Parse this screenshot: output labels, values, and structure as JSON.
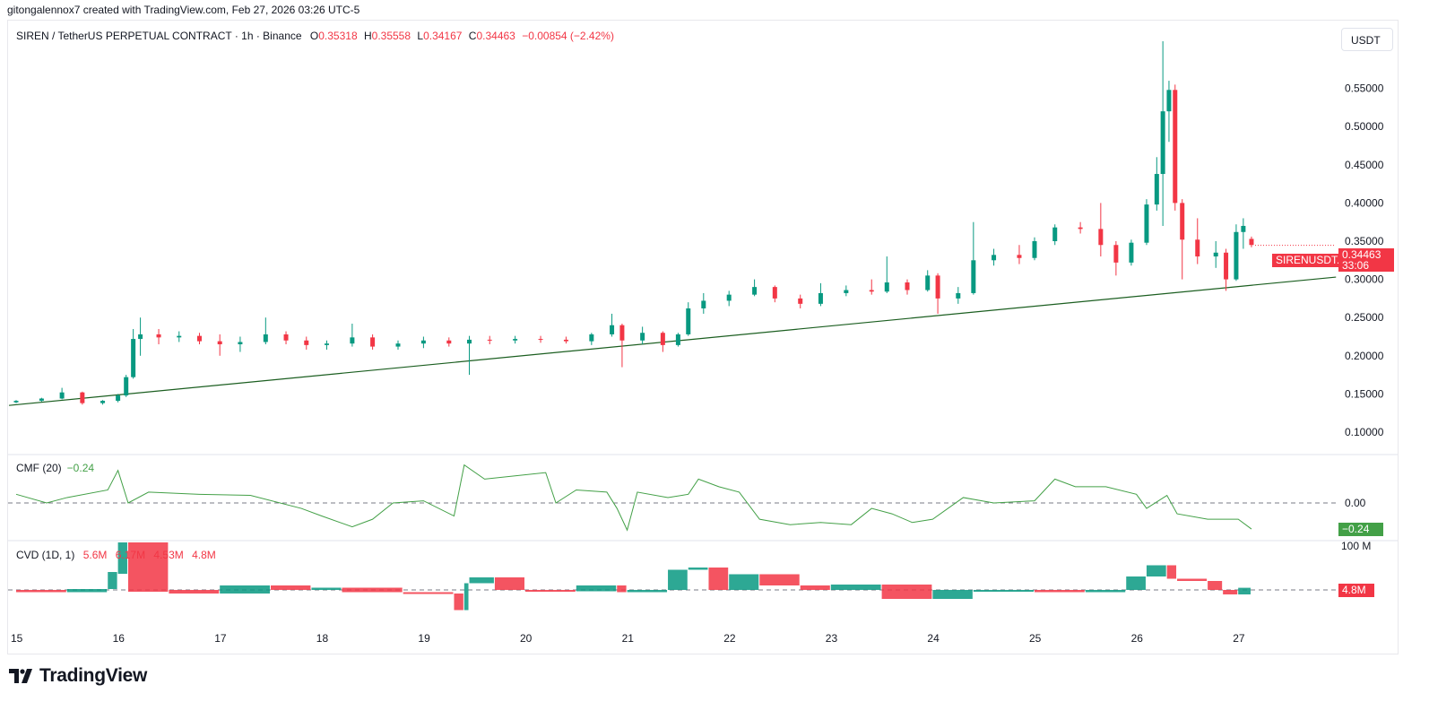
{
  "credit": "gitongalennox7 created with TradingView.com, Feb 27, 2026 03:26 UTC-5",
  "header": {
    "symbol": "SIREN / TetherUS PERPETUAL CONTRACT · 1h · Binance",
    "o_label": "O",
    "o": "0.35318",
    "h_label": "H",
    "h": "0.35558",
    "l_label": "L",
    "l": "0.34167",
    "c_label": "C",
    "c": "0.34463",
    "change": "−0.00854 (−2.42%)"
  },
  "currency_button": "USDT",
  "price_tag": {
    "symbol": "SIRENUSDT.P",
    "price": "0.34463",
    "countdown": "33:06"
  },
  "colors": {
    "up": "#089981",
    "down": "#f23645",
    "cmf": "#43a047",
    "trendline": "#1b5e20"
  },
  "cmf": {
    "label": "CMF (20)",
    "value": "−0.24",
    "zero_label": "0.00",
    "tag": "−0.24"
  },
  "cvd": {
    "label": "CVD (1D, 1)",
    "values": [
      "5.6M",
      "6.17M",
      "4.53M",
      "4.8M"
    ],
    "axis_label": "100 M",
    "tag": "4.8M"
  },
  "logo": "TradingView",
  "chart_data": {
    "type": "candlestick",
    "title": "SIREN / TetherUS PERPETUAL CONTRACT · 1h · Binance",
    "x_ticks": [
      "15",
      "16",
      "17",
      "18",
      "19",
      "20",
      "21",
      "22",
      "23",
      "24",
      "25",
      "26",
      "27"
    ],
    "y_ticks": [
      "0.10000",
      "0.15000",
      "0.20000",
      "0.25000",
      "0.30000",
      "0.35000",
      "0.40000",
      "0.45000",
      "0.50000",
      "0.55000"
    ],
    "ylim": [
      0.1,
      0.6
    ],
    "candles_t_o_h_l_c": [
      [
        15.0,
        0.139,
        0.142,
        0.138,
        0.141
      ],
      [
        15.25,
        0.141,
        0.145,
        0.14,
        0.144
      ],
      [
        15.45,
        0.144,
        0.158,
        0.143,
        0.152
      ],
      [
        15.65,
        0.152,
        0.153,
        0.136,
        0.138
      ],
      [
        15.85,
        0.138,
        0.142,
        0.136,
        0.141
      ],
      [
        16.0,
        0.141,
        0.15,
        0.139,
        0.148
      ],
      [
        16.08,
        0.148,
        0.175,
        0.146,
        0.172
      ],
      [
        16.15,
        0.172,
        0.235,
        0.17,
        0.222
      ],
      [
        16.22,
        0.222,
        0.25,
        0.2,
        0.228
      ],
      [
        16.4,
        0.228,
        0.235,
        0.215,
        0.224
      ],
      [
        16.6,
        0.224,
        0.232,
        0.218,
        0.226
      ],
      [
        16.8,
        0.226,
        0.23,
        0.215,
        0.219
      ],
      [
        17.0,
        0.219,
        0.228,
        0.2,
        0.215
      ],
      [
        17.2,
        0.215,
        0.225,
        0.205,
        0.218
      ],
      [
        17.45,
        0.218,
        0.25,
        0.215,
        0.228
      ],
      [
        17.65,
        0.228,
        0.232,
        0.215,
        0.22
      ],
      [
        17.85,
        0.22,
        0.225,
        0.208,
        0.214
      ],
      [
        18.05,
        0.214,
        0.22,
        0.208,
        0.216
      ],
      [
        18.3,
        0.216,
        0.242,
        0.212,
        0.224
      ],
      [
        18.5,
        0.224,
        0.228,
        0.208,
        0.212
      ],
      [
        18.75,
        0.212,
        0.22,
        0.208,
        0.216
      ],
      [
        19.0,
        0.216,
        0.225,
        0.21,
        0.22
      ],
      [
        19.25,
        0.22,
        0.224,
        0.212,
        0.216
      ],
      [
        19.45,
        0.216,
        0.226,
        0.175,
        0.221
      ],
      [
        19.65,
        0.221,
        0.226,
        0.215,
        0.22
      ],
      [
        19.9,
        0.22,
        0.226,
        0.216,
        0.222
      ],
      [
        20.15,
        0.222,
        0.226,
        0.217,
        0.221
      ],
      [
        20.4,
        0.221,
        0.225,
        0.216,
        0.219
      ],
      [
        20.65,
        0.219,
        0.23,
        0.214,
        0.228
      ],
      [
        20.85,
        0.228,
        0.255,
        0.225,
        0.24
      ],
      [
        20.95,
        0.24,
        0.242,
        0.185,
        0.22
      ],
      [
        21.15,
        0.22,
        0.238,
        0.215,
        0.23
      ],
      [
        21.35,
        0.23,
        0.232,
        0.205,
        0.214
      ],
      [
        21.5,
        0.214,
        0.23,
        0.212,
        0.228
      ],
      [
        21.6,
        0.228,
        0.27,
        0.226,
        0.262
      ],
      [
        21.75,
        0.262,
        0.282,
        0.255,
        0.272
      ],
      [
        22.0,
        0.272,
        0.285,
        0.265,
        0.28
      ],
      [
        22.25,
        0.28,
        0.3,
        0.278,
        0.29
      ],
      [
        22.45,
        0.29,
        0.292,
        0.27,
        0.275
      ],
      [
        22.7,
        0.275,
        0.28,
        0.262,
        0.268
      ],
      [
        22.9,
        0.268,
        0.295,
        0.265,
        0.282
      ],
      [
        23.15,
        0.282,
        0.292,
        0.278,
        0.286
      ],
      [
        23.4,
        0.286,
        0.3,
        0.28,
        0.284
      ],
      [
        23.55,
        0.284,
        0.33,
        0.282,
        0.296
      ],
      [
        23.75,
        0.296,
        0.3,
        0.28,
        0.286
      ],
      [
        23.95,
        0.286,
        0.312,
        0.284,
        0.305
      ],
      [
        24.05,
        0.305,
        0.308,
        0.255,
        0.275
      ],
      [
        24.25,
        0.275,
        0.29,
        0.268,
        0.282
      ],
      [
        24.4,
        0.282,
        0.375,
        0.28,
        0.325
      ],
      [
        24.6,
        0.325,
        0.34,
        0.318,
        0.332
      ],
      [
        24.85,
        0.332,
        0.345,
        0.32,
        0.328
      ],
      [
        25.0,
        0.328,
        0.355,
        0.325,
        0.35
      ],
      [
        25.2,
        0.35,
        0.372,
        0.345,
        0.368
      ],
      [
        25.45,
        0.368,
        0.375,
        0.36,
        0.366
      ],
      [
        25.65,
        0.366,
        0.4,
        0.33,
        0.345
      ],
      [
        25.8,
        0.345,
        0.35,
        0.305,
        0.322
      ],
      [
        25.95,
        0.322,
        0.352,
        0.318,
        0.348
      ],
      [
        26.1,
        0.348,
        0.405,
        0.345,
        0.398
      ],
      [
        26.2,
        0.398,
        0.46,
        0.39,
        0.438
      ],
      [
        26.26,
        0.438,
        0.62,
        0.37,
        0.52
      ],
      [
        26.32,
        0.52,
        0.56,
        0.48,
        0.548
      ],
      [
        26.38,
        0.548,
        0.555,
        0.39,
        0.4
      ],
      [
        26.45,
        0.4,
        0.405,
        0.3,
        0.352
      ],
      [
        26.6,
        0.352,
        0.38,
        0.32,
        0.33
      ],
      [
        26.78,
        0.33,
        0.35,
        0.315,
        0.335
      ],
      [
        26.88,
        0.335,
        0.34,
        0.285,
        0.3
      ],
      [
        26.98,
        0.3,
        0.372,
        0.298,
        0.362
      ],
      [
        27.05,
        0.362,
        0.38,
        0.34,
        0.37
      ],
      [
        27.13,
        0.353,
        0.356,
        0.342,
        0.345
      ]
    ],
    "trendline": {
      "start": [
        14.93,
        0.135
      ],
      "end": [
        27.96,
        0.303
      ]
    },
    "cmf_series": [
      [
        15.0,
        0.08
      ],
      [
        15.3,
        0.0
      ],
      [
        15.5,
        0.05
      ],
      [
        15.9,
        0.12
      ],
      [
        16.0,
        0.3
      ],
      [
        16.1,
        0.0
      ],
      [
        16.3,
        0.1
      ],
      [
        16.8,
        0.08
      ],
      [
        17.3,
        0.07
      ],
      [
        17.8,
        -0.05
      ],
      [
        18.0,
        -0.12
      ],
      [
        18.3,
        -0.22
      ],
      [
        18.5,
        -0.15
      ],
      [
        18.7,
        0.0
      ],
      [
        19.0,
        0.02
      ],
      [
        19.3,
        -0.12
      ],
      [
        19.4,
        0.35
      ],
      [
        19.6,
        0.22
      ],
      [
        19.9,
        0.25
      ],
      [
        20.2,
        0.28
      ],
      [
        20.3,
        0.0
      ],
      [
        20.5,
        0.12
      ],
      [
        20.8,
        0.1
      ],
      [
        20.9,
        -0.05
      ],
      [
        21.0,
        -0.25
      ],
      [
        21.1,
        0.1
      ],
      [
        21.4,
        0.05
      ],
      [
        21.6,
        0.08
      ],
      [
        21.7,
        0.22
      ],
      [
        21.9,
        0.15
      ],
      [
        22.1,
        0.1
      ],
      [
        22.3,
        -0.15
      ],
      [
        22.6,
        -0.2
      ],
      [
        22.9,
        -0.18
      ],
      [
        23.2,
        -0.2
      ],
      [
        23.4,
        -0.05
      ],
      [
        23.6,
        -0.1
      ],
      [
        23.8,
        -0.18
      ],
      [
        24.0,
        -0.15
      ],
      [
        24.3,
        0.05
      ],
      [
        24.6,
        0.0
      ],
      [
        25.0,
        0.02
      ],
      [
        25.2,
        0.22
      ],
      [
        25.4,
        0.15
      ],
      [
        25.7,
        0.15
      ],
      [
        26.0,
        0.08
      ],
      [
        26.1,
        -0.05
      ],
      [
        26.3,
        0.07
      ],
      [
        26.4,
        -0.1
      ],
      [
        26.7,
        -0.15
      ],
      [
        27.0,
        -0.15
      ],
      [
        27.13,
        -0.24
      ]
    ],
    "cmf_ylim": [
      -0.35,
      0.4
    ],
    "cvd_series_M": [
      [
        15.0,
        0
      ],
      [
        15.5,
        -5
      ],
      [
        15.9,
        2
      ],
      [
        16.0,
        40
      ],
      [
        16.1,
        110
      ],
      [
        16.5,
        0
      ],
      [
        17.0,
        -8
      ],
      [
        17.5,
        10
      ],
      [
        17.9,
        0
      ],
      [
        18.2,
        5
      ],
      [
        18.8,
        -5
      ],
      [
        19.3,
        -8
      ],
      [
        19.4,
        -45
      ],
      [
        19.45,
        15
      ],
      [
        19.7,
        28
      ],
      [
        20.0,
        0
      ],
      [
        20.5,
        -3
      ],
      [
        20.9,
        10
      ],
      [
        21.0,
        -5
      ],
      [
        21.4,
        0
      ],
      [
        21.6,
        45
      ],
      [
        21.8,
        50
      ],
      [
        22.0,
        0
      ],
      [
        22.3,
        35
      ],
      [
        22.7,
        10
      ],
      [
        23.0,
        0
      ],
      [
        23.5,
        12
      ],
      [
        24.0,
        -20
      ],
      [
        24.4,
        0
      ],
      [
        25.0,
        0
      ],
      [
        25.5,
        -5
      ],
      [
        25.9,
        0
      ],
      [
        26.1,
        30
      ],
      [
        26.3,
        55
      ],
      [
        26.4,
        25
      ],
      [
        26.7,
        20
      ],
      [
        26.85,
        0
      ],
      [
        27.0,
        -10
      ],
      [
        27.13,
        4.8
      ]
    ],
    "cvd_ylim": [
      -60,
      110
    ]
  }
}
